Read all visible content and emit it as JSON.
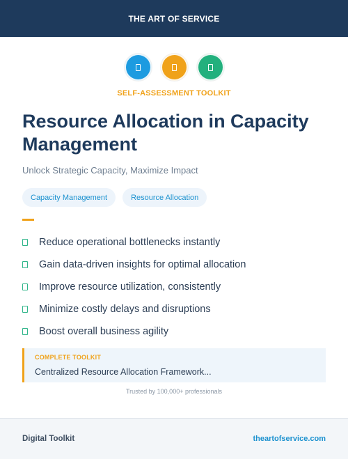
{
  "header": {
    "brand": "THE ART OF SERVICE"
  },
  "icons": [
    {
      "name": "document-icon",
      "color": "#1d9be0"
    },
    {
      "name": "document-icon",
      "color": "#f0a21a"
    },
    {
      "name": "document-icon",
      "color": "#22b07d"
    }
  ],
  "kicker": "SELF-ASSESSMENT TOOLKIT",
  "title": "Resource Allocation in Capacity Management",
  "subtitle": "Unlock Strategic Capacity, Maximize Impact",
  "tags": [
    "Capacity Management",
    "Resource Allocation"
  ],
  "benefits": [
    "Reduce operational bottlenecks instantly",
    "Gain data-driven insights for optimal allocation",
    "Improve resource utilization, consistently",
    "Minimize costly delays and disruptions",
    "Boost overall business agility"
  ],
  "callout": {
    "label": "COMPLETE TOOLKIT",
    "text": "Centralized Resource Allocation Framework..."
  },
  "trust": "Trusted by 100,000+ professionals",
  "footer": {
    "left": "Digital Toolkit",
    "right": "theartofservice.com"
  },
  "colors": {
    "navy": "#1e3a5c",
    "orange": "#f0a21a",
    "blue": "#1b91cf",
    "green": "#2fb58a"
  }
}
